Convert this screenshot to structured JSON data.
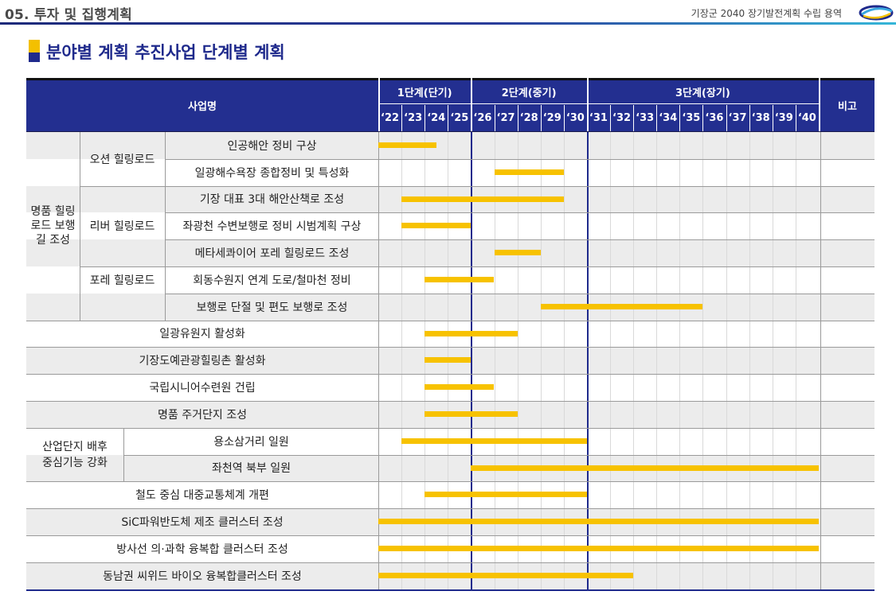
{
  "header": {
    "section": "05. 투자 및 집행계획",
    "report": "기장군 2040 장기발전계획 수립 용역"
  },
  "page_title": "분야별 계획 추진사업 단계별 계획",
  "table": {
    "col_project": "사업명",
    "col_note": "비고",
    "phases": [
      {
        "label": "1단계(단기)"
      },
      {
        "label": "2단계(중기)"
      },
      {
        "label": "3단계(장기)"
      }
    ],
    "years": [
      "‘22",
      "‘23",
      "‘24",
      "‘25",
      "‘26",
      "‘27",
      "‘28",
      "‘29",
      "‘30",
      "‘31",
      "‘32",
      "‘33",
      "‘34",
      "‘35",
      "‘36",
      "‘37",
      "‘38",
      "‘39",
      "‘40"
    ],
    "categories": {
      "healing": "명품 힐링로드 보행길 조성",
      "industrial": "산업단지 배후 중심기능 강화"
    },
    "subgroups": {
      "ocean": "오션 힐링로드",
      "river": "리버 힐링로드",
      "forest": "포레 힐링로드"
    },
    "projects": [
      {
        "name": "인공해안 정비 구상",
        "start": 2022,
        "end": 2024.5
      },
      {
        "name": "일광해수욕장 종합정비 및 특성화",
        "start": 2027,
        "end": 2030
      },
      {
        "name": "기장 대표 3대 해안산책로 조성",
        "start": 2023,
        "end": 2030
      },
      {
        "name": "좌광천 수변보행로 정비 시범계획 구상",
        "start": 2023,
        "end": 2026
      },
      {
        "name": "메타세콰이어 포레 힐링로드 조성",
        "start": 2027,
        "end": 2029
      },
      {
        "name": "회동수원지 연계 도로/철마천 정비",
        "start": 2024,
        "end": 2027
      },
      {
        "name": "보행로 단절 및 편도 보행로 조성",
        "start": 2029,
        "end": 2036
      },
      {
        "name": "일광유원지 활성화",
        "start": 2024,
        "end": 2028
      },
      {
        "name": "기장도예관광힐링촌 활성화",
        "start": 2024,
        "end": 2026
      },
      {
        "name": "국립시니어수련원 건립",
        "start": 2024,
        "end": 2027
      },
      {
        "name": "명품 주거단지 조성",
        "start": 2024,
        "end": 2028
      },
      {
        "name": "용소삼거리 일원",
        "start": 2023,
        "end": 2031
      },
      {
        "name": "좌천역 북부 일원",
        "start": 2026,
        "end": 2041
      },
      {
        "name": "철도 중심 대중교통체계 개편",
        "start": 2024,
        "end": 2031
      },
      {
        "name": "SiC파워반도체 제조 클러스터 조성",
        "start": 2022,
        "end": 2041
      },
      {
        "name": "방사선 의·과학 융복합 클러스터 조성",
        "start": 2022,
        "end": 2041
      },
      {
        "name": "동남권 씨위드 바이오 융복합클러스터 조성",
        "start": 2022,
        "end": 2033
      }
    ]
  },
  "colors": {
    "header_bg": "#232f90",
    "bar": "#f7c200",
    "row_alt": "#ececec"
  }
}
